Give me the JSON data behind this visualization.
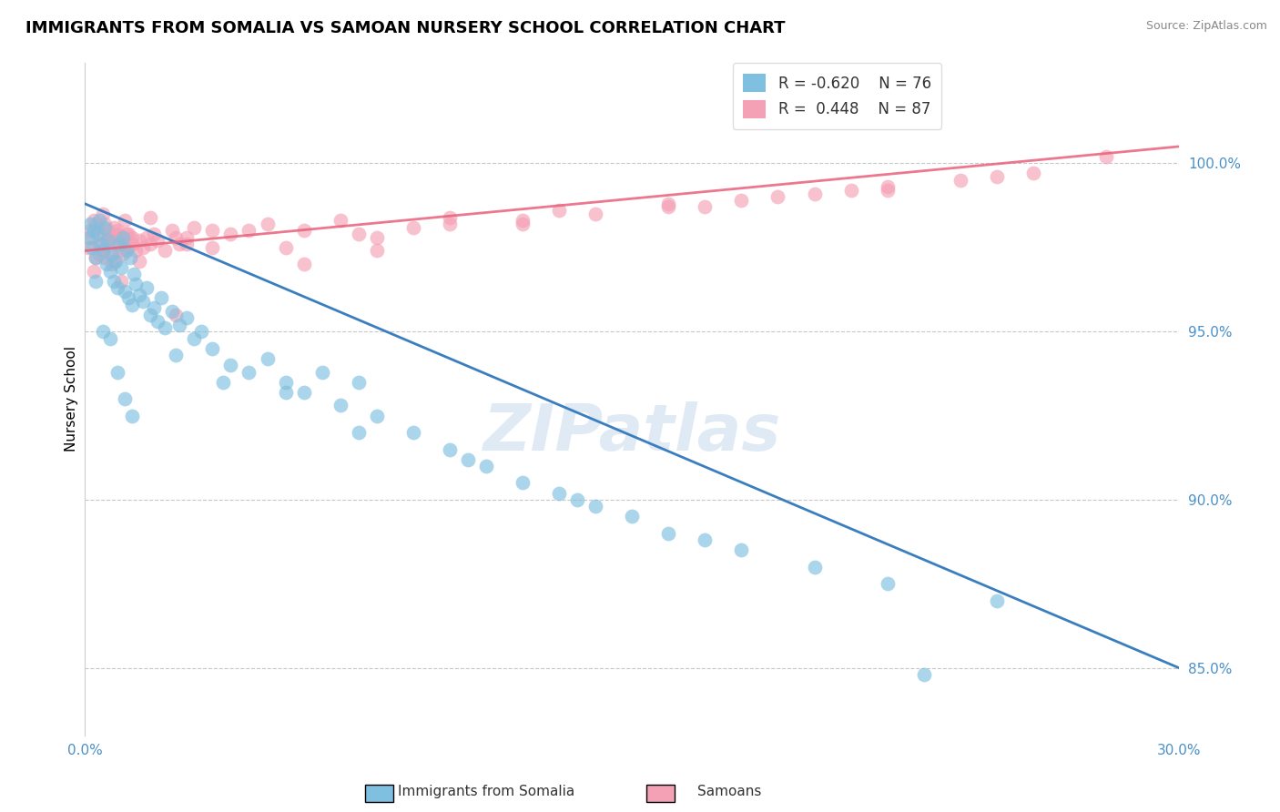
{
  "title": "IMMIGRANTS FROM SOMALIA VS SAMOAN NURSERY SCHOOL CORRELATION CHART",
  "source": "Source: ZipAtlas.com",
  "ylabel": "Nursery School",
  "xlim": [
    0.0,
    30.0
  ],
  "ylim": [
    83.0,
    103.0
  ],
  "yticks": [
    85.0,
    90.0,
    95.0,
    100.0
  ],
  "ytick_labels": [
    "85.0%",
    "90.0%",
    "95.0%",
    "100.0%"
  ],
  "legend_r_blue": "-0.620",
  "legend_n_blue": "76",
  "legend_r_pink": "0.448",
  "legend_n_pink": "87",
  "blue_color": "#7fbfdf",
  "pink_color": "#f4a0b5",
  "trend_blue": "#3a7ebf",
  "trend_pink": "#e8607a",
  "background_color": "#ffffff",
  "grid_color": "#c8c8c8",
  "blue_scatter_x": [
    0.1,
    0.15,
    0.2,
    0.25,
    0.3,
    0.35,
    0.4,
    0.45,
    0.5,
    0.55,
    0.6,
    0.65,
    0.7,
    0.75,
    0.8,
    0.85,
    0.9,
    0.95,
    1.0,
    1.05,
    1.1,
    1.15,
    1.2,
    1.25,
    1.3,
    1.35,
    1.4,
    1.5,
    1.6,
    1.7,
    1.8,
    1.9,
    2.0,
    2.1,
    2.2,
    2.4,
    2.6,
    2.8,
    3.0,
    3.2,
    3.5,
    4.0,
    4.5,
    5.0,
    5.5,
    6.0,
    6.5,
    7.0,
    7.5,
    8.0,
    9.0,
    10.0,
    11.0,
    12.0,
    13.0,
    14.0,
    15.0,
    16.0,
    18.0,
    20.0,
    22.0,
    25.0,
    0.3,
    0.5,
    0.7,
    0.9,
    1.1,
    1.3,
    2.5,
    3.8,
    5.5,
    7.5,
    10.5,
    13.5,
    17.0,
    23.0
  ],
  "blue_scatter_y": [
    97.8,
    98.2,
    97.5,
    98.0,
    97.2,
    97.9,
    98.3,
    97.6,
    97.4,
    98.1,
    97.0,
    97.7,
    96.8,
    97.3,
    96.5,
    97.1,
    96.3,
    97.6,
    96.9,
    97.8,
    96.2,
    97.4,
    96.0,
    97.2,
    95.8,
    96.7,
    96.4,
    96.1,
    95.9,
    96.3,
    95.5,
    95.7,
    95.3,
    96.0,
    95.1,
    95.6,
    95.2,
    95.4,
    94.8,
    95.0,
    94.5,
    94.0,
    93.8,
    94.2,
    93.5,
    93.2,
    93.8,
    92.8,
    93.5,
    92.5,
    92.0,
    91.5,
    91.0,
    90.5,
    90.2,
    89.8,
    89.5,
    89.0,
    88.5,
    88.0,
    87.5,
    87.0,
    96.5,
    95.0,
    94.8,
    93.8,
    93.0,
    92.5,
    94.3,
    93.5,
    93.2,
    92.0,
    91.2,
    90.0,
    88.8,
    84.8
  ],
  "pink_scatter_x": [
    0.1,
    0.15,
    0.2,
    0.25,
    0.3,
    0.35,
    0.4,
    0.45,
    0.5,
    0.55,
    0.6,
    0.65,
    0.7,
    0.75,
    0.8,
    0.85,
    0.9,
    0.95,
    1.0,
    1.05,
    1.1,
    1.15,
    1.2,
    1.3,
    1.4,
    1.5,
    1.6,
    1.7,
    1.8,
    1.9,
    2.0,
    2.2,
    2.4,
    2.6,
    2.8,
    3.0,
    3.5,
    4.0,
    5.0,
    6.0,
    7.0,
    8.0,
    9.0,
    10.0,
    12.0,
    14.0,
    16.0,
    18.0,
    20.0,
    22.0,
    24.0,
    26.0,
    28.0,
    0.3,
    0.5,
    0.7,
    0.9,
    1.1,
    1.3,
    2.5,
    3.5,
    5.5,
    7.5,
    10.0,
    13.0,
    16.0,
    19.0,
    22.0,
    25.0,
    0.4,
    0.6,
    0.8,
    1.2,
    1.8,
    2.8,
    4.5,
    8.0,
    12.0,
    17.0,
    21.0,
    0.25,
    0.55,
    0.75,
    1.0,
    1.5,
    2.5,
    6.0
  ],
  "pink_scatter_y": [
    97.5,
    98.0,
    97.8,
    98.3,
    97.2,
    98.1,
    97.6,
    97.9,
    97.4,
    98.2,
    97.7,
    98.0,
    97.3,
    97.8,
    97.1,
    97.6,
    97.9,
    97.4,
    97.8,
    97.3,
    97.6,
    97.9,
    97.5,
    97.8,
    97.4,
    97.7,
    97.5,
    97.8,
    97.6,
    97.9,
    97.7,
    97.4,
    98.0,
    97.6,
    97.8,
    98.1,
    97.5,
    97.9,
    98.2,
    98.0,
    98.3,
    97.8,
    98.1,
    98.4,
    98.2,
    98.5,
    98.7,
    98.9,
    99.1,
    99.3,
    99.5,
    99.7,
    100.2,
    98.2,
    98.5,
    97.8,
    98.0,
    98.3,
    97.6,
    97.8,
    98.0,
    97.5,
    97.9,
    98.2,
    98.6,
    98.8,
    99.0,
    99.2,
    99.6,
    97.3,
    97.7,
    98.1,
    97.9,
    98.4,
    97.6,
    98.0,
    97.4,
    98.3,
    98.7,
    99.2,
    96.8,
    97.2,
    97.0,
    96.5,
    97.1,
    95.5,
    97.0
  ],
  "blue_trend_x": [
    0.0,
    30.0
  ],
  "blue_trend_y": [
    98.8,
    85.0
  ],
  "pink_trend_x": [
    0.0,
    30.0
  ],
  "pink_trend_y": [
    97.4,
    100.5
  ],
  "watermark": "ZIPatlas",
  "title_fontsize": 13,
  "tick_fontsize": 11,
  "label_fontsize": 11
}
